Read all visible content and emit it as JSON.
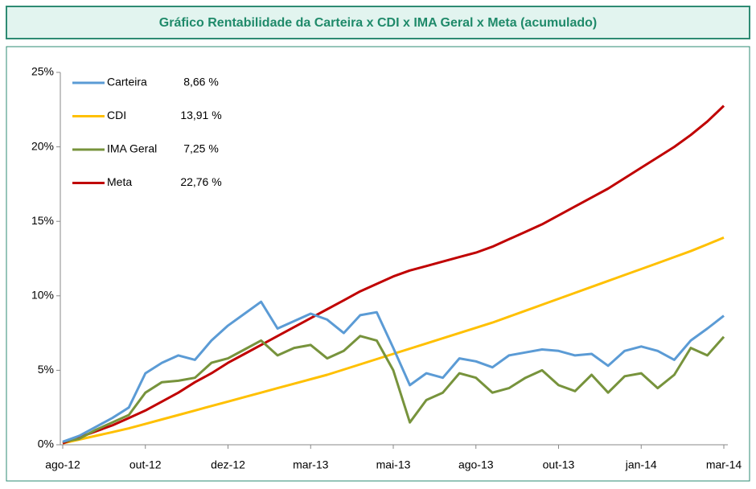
{
  "chart_data": {
    "type": "line",
    "title": "Gráfico Rentabilidade da Carteira x CDI x IMA Geral x Meta (acumulado)",
    "categories": [
      "ago-12",
      null,
      null,
      null,
      null,
      "out-12",
      null,
      null,
      null,
      null,
      "dez-12",
      null,
      null,
      null,
      null,
      "mar-13",
      null,
      null,
      null,
      null,
      "mai-13",
      null,
      null,
      null,
      null,
      "ago-13",
      null,
      null,
      null,
      null,
      "out-13",
      null,
      null,
      null,
      null,
      "jan-14",
      null,
      null,
      null,
      null,
      "mar-14"
    ],
    "series": [
      {
        "name": "Carteira",
        "legend_label": "8,66 %",
        "color": "#5b9bd5",
        "values": [
          0.2,
          0.6,
          1.2,
          1.8,
          2.5,
          4.8,
          5.5,
          6.0,
          5.7,
          7.0,
          8.0,
          8.8,
          9.6,
          7.8,
          8.3,
          8.8,
          8.4,
          7.5,
          8.7,
          8.9,
          6.5,
          4.0,
          4.8,
          4.5,
          5.8,
          5.6,
          5.2,
          6.0,
          6.2,
          6.4,
          6.3,
          6.0,
          6.1,
          5.3,
          6.3,
          6.6,
          6.3,
          5.7,
          7.0,
          7.8,
          8.66
        ]
      },
      {
        "name": "CDI",
        "legend_label": "13,91 %",
        "color": "#ffc000",
        "values": [
          0.1,
          0.35,
          0.6,
          0.85,
          1.1,
          1.4,
          1.7,
          2.0,
          2.3,
          2.6,
          2.9,
          3.2,
          3.5,
          3.8,
          4.1,
          4.4,
          4.7,
          5.05,
          5.4,
          5.75,
          6.1,
          6.45,
          6.8,
          7.15,
          7.5,
          7.85,
          8.2,
          8.6,
          9.0,
          9.4,
          9.8,
          10.2,
          10.6,
          11.0,
          11.4,
          11.8,
          12.2,
          12.6,
          13.0,
          13.45,
          13.91
        ]
      },
      {
        "name": "IMA Geral",
        "legend_label": "7,25 %",
        "color": "#77933c",
        "values": [
          0.2,
          0.4,
          1.0,
          1.5,
          2.0,
          3.5,
          4.2,
          4.3,
          4.5,
          5.5,
          5.8,
          6.4,
          7.0,
          6.0,
          6.5,
          6.7,
          5.8,
          6.3,
          7.3,
          7.0,
          5.0,
          1.5,
          3.0,
          3.5,
          4.8,
          4.5,
          3.5,
          3.8,
          4.5,
          5.0,
          4.0,
          3.6,
          4.7,
          3.5,
          4.6,
          4.8,
          3.8,
          4.7,
          6.5,
          6.0,
          7.25
        ]
      },
      {
        "name": "Meta",
        "legend_label": "22,76 %",
        "color": "#c00000",
        "values": [
          0.1,
          0.5,
          0.9,
          1.3,
          1.8,
          2.3,
          2.9,
          3.5,
          4.2,
          4.8,
          5.5,
          6.1,
          6.7,
          7.3,
          7.9,
          8.5,
          9.1,
          9.7,
          10.3,
          10.8,
          11.3,
          11.7,
          12.0,
          12.3,
          12.6,
          12.9,
          13.3,
          13.8,
          14.3,
          14.8,
          15.4,
          16.0,
          16.6,
          17.2,
          17.9,
          18.6,
          19.3,
          20.0,
          20.8,
          21.7,
          22.76
        ]
      }
    ],
    "ylim": [
      0,
      25
    ],
    "yticks": [
      {
        "value": 0,
        "label": "0%"
      },
      {
        "value": 5,
        "label": "5%"
      },
      {
        "value": 10,
        "label": "10%"
      },
      {
        "value": 15,
        "label": "15%"
      },
      {
        "value": 20,
        "label": "20%"
      },
      {
        "value": 25,
        "label": "25%"
      }
    ]
  }
}
